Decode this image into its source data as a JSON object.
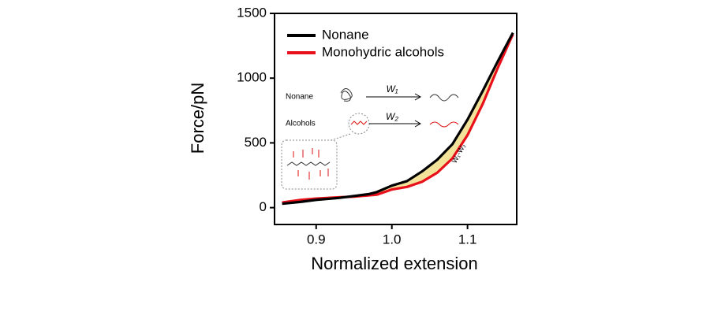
{
  "chart_data": {
    "type": "line",
    "xlabel": "Normalized extension",
    "ylabel": "Force/pN",
    "x": [
      0.855,
      0.88,
      0.9,
      0.93,
      0.95,
      0.97,
      0.98,
      1.0,
      1.02,
      1.04,
      1.06,
      1.08,
      1.1,
      1.12,
      1.14,
      1.16
    ],
    "series": [
      {
        "name": "Nonane",
        "color": "#000000",
        "values": [
          30,
          45,
          60,
          75,
          90,
          105,
          120,
          170,
          205,
          280,
          370,
          490,
          680,
          900,
          1130,
          1350
        ]
      },
      {
        "name": "Monohydric alcohols",
        "color": "#e8101a",
        "values": [
          40,
          60,
          70,
          80,
          85,
          95,
          100,
          140,
          160,
          200,
          270,
          380,
          560,
          800,
          1080,
          1340
        ]
      }
    ],
    "xlim": [
      0.845,
      1.165
    ],
    "ylim": [
      -130,
      1500
    ],
    "xticks": [
      0.9,
      {
        "value": 1,
        "label": "1.0"
      },
      1.1
    ],
    "yticks": [
      0,
      500,
      1000,
      1500
    ],
    "fill_between_color": "#f3e39a",
    "legend": "upper left",
    "annotations": [
      "Nonane",
      "Alcohols",
      "W₁",
      "W₂",
      "W₁-W₂"
    ]
  }
}
